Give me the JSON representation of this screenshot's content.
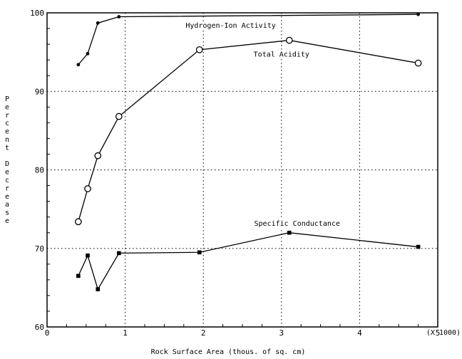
{
  "chart_data": {
    "type": "line",
    "title": "",
    "xlabel": "Rock Surface Area (thous. of sq. cm)",
    "x_multiplier_label": "(X 1000)",
    "ylabel": "Percent Decrease",
    "xlim": [
      0,
      5
    ],
    "ylim": [
      60,
      100
    ],
    "x_ticks": [
      0,
      1,
      2,
      3,
      4,
      5
    ],
    "y_ticks": [
      60,
      70,
      80,
      90,
      100
    ],
    "grid": true,
    "series": [
      {
        "name": "Hydrogen-Ion Activity",
        "marker": "dot",
        "x": [
          0.4,
          0.52,
          0.65,
          0.92,
          4.75
        ],
        "y": [
          93.4,
          94.8,
          98.7,
          99.5,
          99.8
        ]
      },
      {
        "name": "Total Acidity",
        "marker": "circle",
        "x": [
          0.4,
          0.52,
          0.65,
          0.92,
          1.95,
          3.1,
          4.75
        ],
        "y": [
          73.4,
          77.6,
          81.8,
          86.8,
          95.3,
          96.5,
          93.6
        ]
      },
      {
        "name": "Specific Conductance",
        "marker": "square",
        "x": [
          0.4,
          0.52,
          0.65,
          0.92,
          1.95,
          3.1,
          4.75
        ],
        "y": [
          66.5,
          69.1,
          64.8,
          69.4,
          69.5,
          72.0,
          70.2
        ]
      }
    ]
  }
}
